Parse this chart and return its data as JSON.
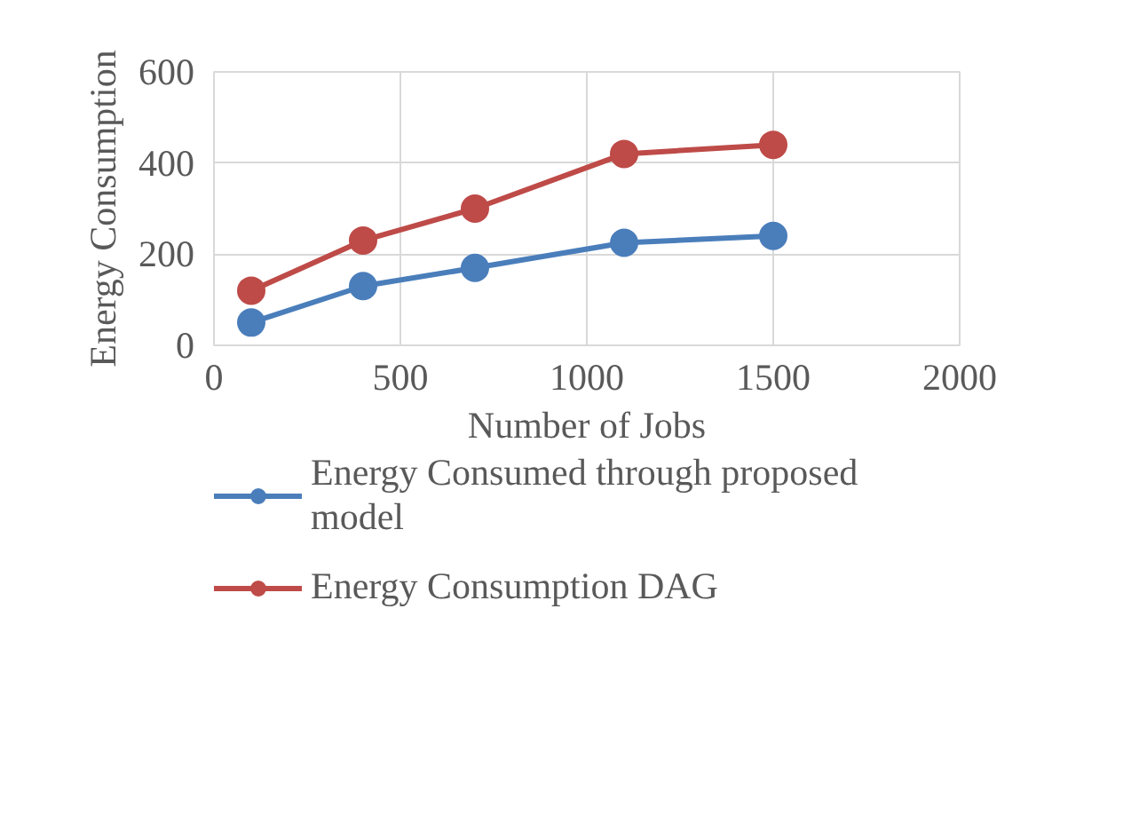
{
  "chart_data": {
    "type": "line",
    "xlabel": "Number of Jobs",
    "ylabel": "Energy Consumption",
    "x": [
      100,
      400,
      700,
      1100,
      1500
    ],
    "series": [
      {
        "name": "Energy Consumed through proposed model",
        "color": "#4a7ebb",
        "values": [
          50,
          130,
          170,
          225,
          240
        ]
      },
      {
        "name": "Energy Consumption DAG",
        "color": "#be4b48",
        "values": [
          120,
          230,
          300,
          420,
          440
        ]
      }
    ],
    "xlim": [
      0,
      2000
    ],
    "xticks": [
      0,
      500,
      1000,
      1500,
      2000
    ],
    "ylim": [
      0,
      600
    ],
    "yticks": [
      0,
      200,
      400,
      600
    ],
    "grid": true,
    "legend": "bottom",
    "marker": "circle",
    "line_style": "solid"
  }
}
